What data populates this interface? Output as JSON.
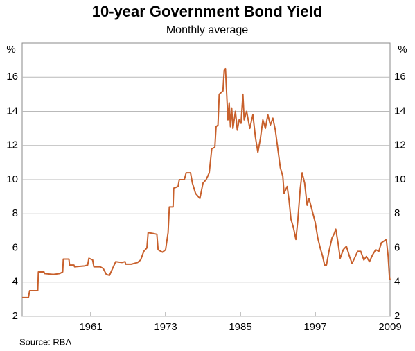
{
  "chart_data": {
    "type": "line",
    "title": "10-year Government Bond Yield",
    "subtitle": "Monthly average",
    "y_label": "%",
    "source": "Source:  RBA",
    "x": [
      1950,
      1951.0,
      1951.2,
      1952.5,
      1952.6,
      1953.5,
      1953.6,
      1955,
      1956,
      1956.5,
      1956.6,
      1957.5,
      1957.6,
      1958.3,
      1958.4,
      1960,
      1960.5,
      1960.7,
      1961.3,
      1961.5,
      1962.5,
      1963,
      1963.5,
      1964,
      1964.5,
      1965,
      1966,
      1966.5,
      1966.6,
      1967.5,
      1968.5,
      1969,
      1969.5,
      1970,
      1970.2,
      1971,
      1971.6,
      1971.8,
      1972.5,
      1973,
      1973.4,
      1973.6,
      1974.2,
      1974.3,
      1975,
      1975.2,
      1976,
      1976.3,
      1977,
      1977.3,
      1977.8,
      1978.5,
      1979,
      1979.5,
      1980,
      1980.4,
      1980.9,
      1981.1,
      1981.4,
      1981.6,
      1982.2,
      1982.4,
      1982.6,
      1982.8,
      1983,
      1983.2,
      1983.4,
      1983.6,
      1983.8,
      1984.2,
      1984.5,
      1984.8,
      1985.1,
      1985.4,
      1985.6,
      1986,
      1986.5,
      1987,
      1987.4,
      1987.8,
      1988.2,
      1988.6,
      1989.0,
      1989.4,
      1989.8,
      1990.2,
      1990.6,
      1991,
      1991.4,
      1991.8,
      1992,
      1992.5,
      1992.8,
      1993.1,
      1993.5,
      1993.9,
      1994.2,
      1994.6,
      1994.9,
      1995.3,
      1995.7,
      1996,
      1996.5,
      1997,
      1997.4,
      1997.8,
      1998.2,
      1998.5,
      1998.8,
      1999.2,
      1999.7,
      2000,
      2000.3,
      2000.7,
      2001,
      2001.5,
      2002,
      2002.5,
      2002.9,
      2003.3,
      2003.8,
      2004.3,
      2004.8,
      2005.2,
      2005.7,
      2006.2,
      2006.7,
      2007.2,
      2007.6,
      2008.0,
      2008.4,
      2008.7,
      2008.9,
      2009.0
    ],
    "values": [
      3.1,
      3.1,
      3.5,
      3.5,
      4.6,
      4.6,
      4.5,
      4.45,
      4.5,
      4.6,
      5.35,
      5.35,
      5.0,
      5.0,
      4.9,
      4.95,
      5.0,
      5.4,
      5.3,
      4.9,
      4.9,
      4.8,
      4.45,
      4.4,
      4.8,
      5.2,
      5.15,
      5.2,
      5.05,
      5.05,
      5.15,
      5.3,
      5.8,
      6.0,
      6.9,
      6.85,
      6.8,
      5.9,
      5.75,
      5.9,
      6.9,
      8.4,
      8.4,
      9.5,
      9.6,
      10.0,
      10.0,
      10.4,
      10.4,
      9.8,
      9.2,
      8.9,
      9.8,
      10.0,
      10.4,
      11.8,
      11.9,
      13.1,
      13.2,
      15.0,
      15.2,
      16.4,
      16.5,
      15.0,
      13.5,
      14.5,
      13.1,
      14.2,
      13.0,
      14.0,
      12.9,
      13.5,
      13.3,
      15.0,
      13.5,
      14.0,
      13.0,
      13.8,
      12.5,
      11.6,
      12.4,
      13.5,
      13.0,
      13.8,
      13.2,
      13.6,
      12.9,
      11.8,
      10.7,
      10.2,
      9.2,
      9.6,
      8.8,
      7.7,
      7.2,
      6.5,
      7.6,
      9.5,
      10.4,
      9.8,
      8.5,
      8.9,
      8.2,
      7.5,
      6.6,
      6.0,
      5.5,
      5.0,
      5.0,
      5.8,
      6.6,
      6.8,
      7.1,
      6.2,
      5.4,
      5.9,
      6.1,
      5.5,
      5.1,
      5.4,
      5.8,
      5.8,
      5.3,
      5.5,
      5.2,
      5.6,
      5.9,
      5.8,
      6.3,
      6.4,
      6.5,
      5.5,
      4.3,
      4.15
    ],
    "color": "#c8602c",
    "xlim": [
      1950,
      2009
    ],
    "xticks": [
      1961,
      1973,
      1985,
      1997,
      2009
    ],
    "ylim": [
      2,
      18
    ],
    "yticks": [
      2,
      4,
      6,
      8,
      10,
      12,
      14,
      16
    ],
    "grid": true
  }
}
